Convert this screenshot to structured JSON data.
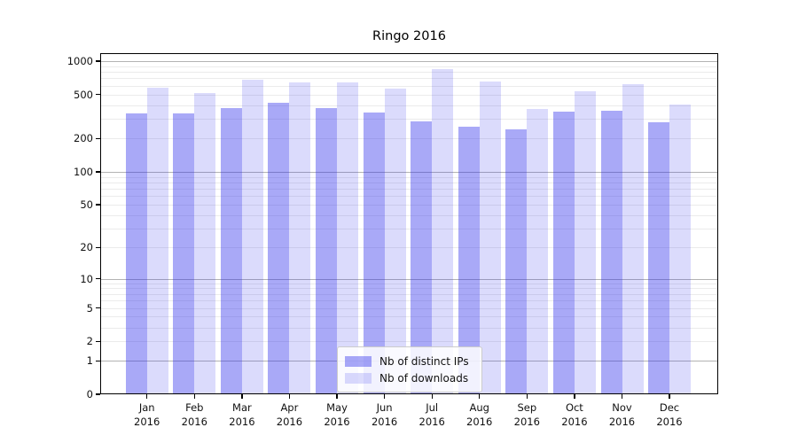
{
  "title": "Ringo 2016",
  "legend": {
    "items": [
      {
        "label": "Nb of distinct IPs"
      },
      {
        "label": "Nb of downloads"
      }
    ]
  },
  "colors": {
    "distinct_ips_bar": "rgba(40,40,235,0.40)",
    "downloads_bar": "rgba(40,40,235,0.17)",
    "major_gridline": "#b3b3b3",
    "minor_gridline": "#ebebeb",
    "axis": "#000000"
  },
  "chart_data": {
    "type": "bar",
    "title": "Ringo 2016",
    "categories": [
      "Jan 2016",
      "Feb 2016",
      "Mar 2016",
      "Apr 2016",
      "May 2016",
      "Jun 2016",
      "Jul 2016",
      "Aug 2016",
      "Sep 2016",
      "Oct 2016",
      "Nov 2016",
      "Dec 2016"
    ],
    "series": [
      {
        "name": "Nb of distinct IPs",
        "values": [
          340,
          335,
          375,
          420,
          380,
          345,
          285,
          258,
          243,
          350,
          357,
          283
        ]
      },
      {
        "name": "Nb of downloads",
        "values": [
          573,
          520,
          680,
          640,
          640,
          562,
          852,
          652,
          372,
          539,
          622,
          409
        ]
      }
    ],
    "xlabel": "",
    "ylabel": "",
    "y_axis": {
      "scale": "log-like (y maps as log10(1+value), 0 at baseline)",
      "tick_values": [
        1000,
        500,
        200,
        100,
        50,
        20,
        10,
        5,
        2,
        1,
        0
      ],
      "major_grid_values": [
        1,
        10,
        100,
        1000
      ],
      "minor_grid_values": [
        2,
        3,
        4,
        5,
        6,
        7,
        8,
        9,
        20,
        30,
        40,
        50,
        60,
        70,
        80,
        90,
        200,
        300,
        400,
        500,
        600,
        700,
        800,
        900
      ],
      "ylim": [
        0,
        1180
      ]
    },
    "grid": true,
    "legend_position": "lower center"
  }
}
